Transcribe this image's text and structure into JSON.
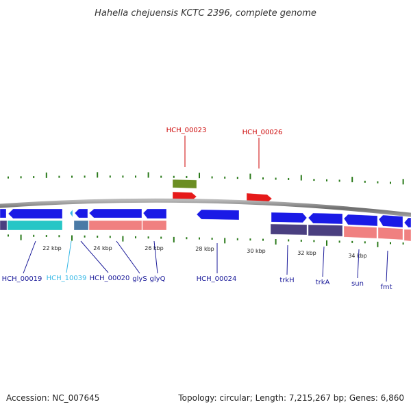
{
  "title": "Hahella chejuensis KCTC 2396, complete genome",
  "footer": {
    "accession": "Accession: NC_007645",
    "summary": "Topology: circular; Length: 7,215,267 bp; Genes: 6,860"
  },
  "colors": {
    "backbone": "#7a7a7a",
    "tick": "#2a7a1a",
    "cds": "#1a1ae6",
    "trna": "#33b7e6",
    "rna_mark": "#e61a1a",
    "rna_label": "#cc0000",
    "other_track": "#6b8e23",
    "label": "#1a1a99",
    "trna_label": "#33b7e6",
    "cog_teal": "#26c6c6",
    "cog_steel": "#4a7aa6",
    "cog_salmon": "#f08080",
    "cog_slate": "#4a3f80"
  },
  "kbp_labels": [
    "22 kbp",
    "24 kbp",
    "26 kbp",
    "28 kbp",
    "30 kbp",
    "32 kbp",
    "34 kbp"
  ],
  "gene_labels": [
    {
      "text": "HCH_00019",
      "kind": "cds"
    },
    {
      "text": "HCH_10039",
      "kind": "trna"
    },
    {
      "text": "HCH_00020",
      "kind": "cds"
    },
    {
      "text": "glyS",
      "kind": "cds"
    },
    {
      "text": "glyQ",
      "kind": "cds"
    },
    {
      "text": "HCH_00024",
      "kind": "cds"
    },
    {
      "text": "trkH",
      "kind": "cds"
    },
    {
      "text": "trkA",
      "kind": "cds"
    },
    {
      "text": "sun",
      "kind": "cds"
    },
    {
      "text": "fmt",
      "kind": "cds"
    }
  ],
  "top_labels": [
    {
      "text": "HCH_00023"
    },
    {
      "text": "HCH_00026"
    }
  ]
}
